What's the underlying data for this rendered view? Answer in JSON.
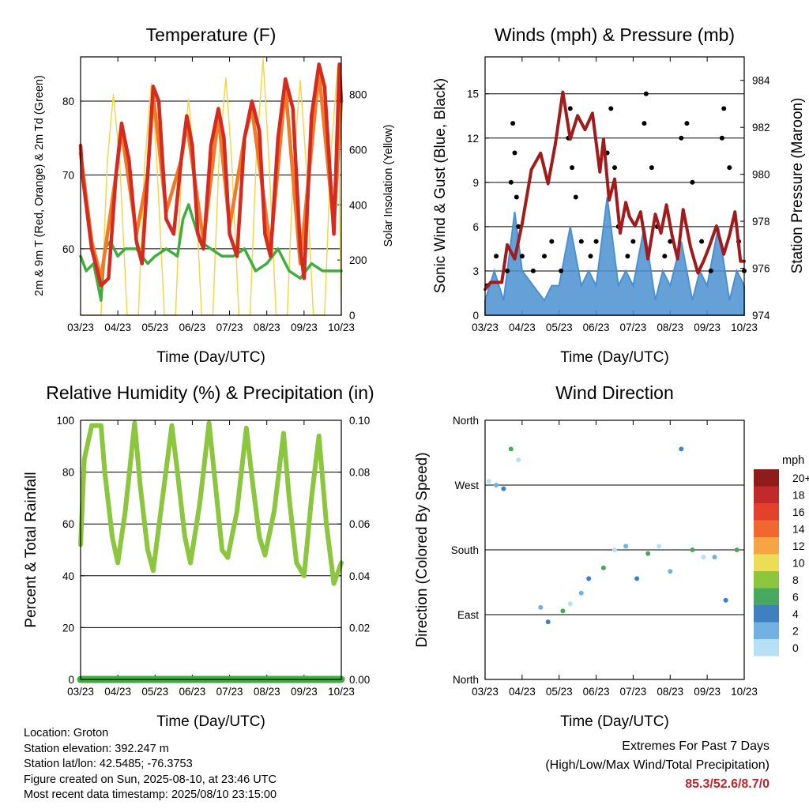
{
  "panels": {
    "temperature": {
      "title": "Temperature (F)",
      "ylabel_left": "2m & 9m T (Red, Orange) & 2m Td (Green)",
      "ylabel_right": "Solar Insolation (Yellow)",
      "xlabel": "Time (Day/UTC)"
    },
    "winds": {
      "title": "Winds (mph) & Pressure (mb)",
      "ylabel_left": "Sonic Wind & Gust (Blue, Black)",
      "ylabel_right": "Station Pressure (Maroon)",
      "xlabel": "Time (Day/UTC)"
    },
    "humidity": {
      "title": "Relative Humidity (%) & Precipitation (in)",
      "ylabel_left": "Percent & Total Rainfall",
      "xlabel": "Time (Day/UTC)"
    },
    "direction": {
      "title": "Wind Direction",
      "ylabel_left": "Direction (Colored By Speed)",
      "xlabel": "Time (Day/UTC)",
      "legend_title": "mph"
    }
  },
  "chart_data": [
    {
      "id": "temperature",
      "type": "line",
      "title": "Temperature (F)",
      "xlabel": "Time (Day/UTC)",
      "ylabel": "2m & 9m T (Red, Orange) & 2m Td (Green)",
      "y2label": "Solar Insolation (Yellow)",
      "x_ticks": [
        "03/23",
        "04/23",
        "05/23",
        "06/23",
        "07/23",
        "08/23",
        "09/23",
        "10/23"
      ],
      "ylim": [
        51,
        86
      ],
      "y_ticks": [
        60,
        70,
        80
      ],
      "y2lim": [
        0,
        936
      ],
      "y2_ticks": [
        0,
        200,
        400,
        600,
        800
      ],
      "grid": true,
      "series": [
        {
          "name": "2m T",
          "color": "#d42a20",
          "x": [
            0,
            0.05,
            0.3,
            0.55,
            0.75,
            0.95,
            1.1,
            1.3,
            1.5,
            1.65,
            1.8,
            1.95,
            2.1,
            2.3,
            2.5,
            2.7,
            2.85,
            3.0,
            3.15,
            3.3,
            3.5,
            3.7,
            3.85,
            4.0,
            4.2,
            4.4,
            4.6,
            4.8,
            4.95,
            5.1,
            5.3,
            5.5,
            5.7,
            5.9,
            6.0,
            6.2,
            6.4,
            6.55,
            6.8,
            6.95,
            7.0
          ],
          "values": [
            74,
            70,
            60,
            55,
            56,
            70,
            77,
            72,
            61,
            58,
            70,
            82,
            80,
            64,
            62,
            72,
            78,
            74,
            62,
            60,
            74,
            79,
            75,
            62,
            59,
            75,
            80,
            76,
            62,
            59,
            75,
            83,
            79,
            60,
            56,
            78,
            85,
            82,
            62,
            85,
            80
          ]
        },
        {
          "name": "9m T",
          "color": "#f07a25",
          "x": [
            0,
            0.3,
            0.55,
            0.95,
            1.1,
            1.5,
            1.8,
            1.95,
            2.3,
            2.7,
            2.85,
            3.3,
            3.7,
            4.0,
            4.4,
            4.6,
            5.1,
            5.5,
            5.9,
            6.4,
            6.8,
            7.0
          ],
          "values": [
            73,
            61,
            56,
            70,
            76,
            62,
            70,
            81,
            65,
            72,
            77,
            61,
            78,
            63,
            75,
            79,
            60,
            82,
            58,
            84,
            63,
            80
          ]
        },
        {
          "name": "2m Td",
          "color": "#3fae3f",
          "x": [
            0,
            0.15,
            0.35,
            0.55,
            0.65,
            0.8,
            1.0,
            1.2,
            1.5,
            1.8,
            2.0,
            2.3,
            2.6,
            2.75,
            2.9,
            3.2,
            3.5,
            3.8,
            4.1,
            4.4,
            4.7,
            5.0,
            5.3,
            5.6,
            5.9,
            6.2,
            6.5,
            6.8,
            7.0
          ],
          "values": [
            59,
            57,
            58,
            53,
            60,
            61,
            59,
            60,
            60,
            58,
            59,
            60,
            59,
            64,
            66,
            61,
            60,
            59,
            59,
            60,
            57,
            58,
            60,
            57,
            56,
            58,
            57,
            57,
            57
          ]
        },
        {
          "name": "Solar Insolation",
          "color": "#f3d64a",
          "axis": "y2",
          "x": [
            0,
            0.25,
            0.55,
            0.72,
            0.88,
            1.05,
            1.25,
            1.55,
            1.72,
            1.9,
            2.05,
            2.25,
            2.55,
            2.72,
            2.9,
            3.05,
            3.25,
            3.55,
            3.72,
            3.9,
            4.05,
            4.25,
            4.55,
            4.72,
            4.9,
            5.05,
            5.25,
            5.55,
            5.72,
            5.9,
            6.05,
            6.25,
            6.55,
            6.72,
            6.9,
            7.0
          ],
          "values": [
            0,
            0,
            0,
            560,
            800,
            560,
            0,
            0,
            550,
            840,
            550,
            0,
            0,
            560,
            780,
            560,
            0,
            0,
            580,
            860,
            580,
            0,
            0,
            580,
            930,
            580,
            0,
            0,
            560,
            850,
            560,
            0,
            0,
            580,
            900,
            0
          ]
        }
      ]
    },
    {
      "id": "winds",
      "type": "line",
      "title": "Winds (mph) & Pressure (mb)",
      "xlabel": "Time (Day/UTC)",
      "ylabel": "Sonic Wind & Gust (Blue, Black)",
      "y2label": "Station Pressure (Maroon)",
      "x_ticks": [
        "03/23",
        "04/23",
        "05/23",
        "06/23",
        "07/23",
        "08/23",
        "09/23",
        "10/23"
      ],
      "ylim": [
        0,
        17.5
      ],
      "y_ticks": [
        0,
        3,
        6,
        9,
        12,
        15
      ],
      "y2lim": [
        974,
        985
      ],
      "y2_ticks": [
        974,
        976,
        978,
        980,
        982,
        984
      ],
      "grid": true,
      "series": [
        {
          "name": "Station Pressure",
          "color": "#a01c1c",
          "axis": "y2",
          "x": [
            0,
            0.15,
            0.45,
            0.6,
            0.8,
            1.0,
            1.25,
            1.5,
            1.7,
            1.9,
            2.1,
            2.3,
            2.5,
            2.7,
            2.9,
            3.1,
            3.2,
            3.35,
            3.5,
            3.65,
            3.8,
            3.9,
            4.05,
            4.2,
            4.4,
            4.6,
            4.75,
            4.9,
            5.05,
            5.2,
            5.35,
            5.55,
            5.75,
            5.9,
            6.05,
            6.25,
            6.45,
            6.6,
            6.75,
            6.9,
            7.0
          ],
          "values": [
            975.1,
            975.4,
            975.4,
            977,
            976.4,
            977.9,
            980.2,
            980.9,
            979.6,
            981.3,
            983.5,
            981.5,
            982.5,
            981.9,
            982.6,
            980.1,
            981.5,
            978.9,
            979.8,
            977.5,
            978.8,
            978.2,
            977.8,
            978.4,
            976.4,
            978.3,
            977.5,
            978.7,
            977.4,
            976.4,
            978.5,
            976.9,
            975.8,
            976.3,
            976.9,
            977.8,
            976.6,
            977.4,
            978.4,
            976.3,
            976.3
          ]
        },
        {
          "name": "Sonic Wind",
          "color": "#4a90d0",
          "x": [
            0,
            0.25,
            0.5,
            0.8,
            1.0,
            1.3,
            1.6,
            1.8,
            2.0,
            2.3,
            2.6,
            2.8,
            3.0,
            3.3,
            3.6,
            3.8,
            4.0,
            4.3,
            4.6,
            4.8,
            5.0,
            5.3,
            5.6,
            5.8,
            6.0,
            6.3,
            6.6,
            6.8,
            7.0
          ],
          "values": [
            1,
            3,
            1,
            7,
            3,
            2,
            1,
            2,
            2,
            6,
            2,
            3,
            2,
            8,
            2,
            3,
            2,
            6,
            1,
            3,
            2,
            5,
            1,
            3,
            2,
            6,
            1,
            3,
            2
          ]
        },
        {
          "name": "Gust",
          "color": "#000000",
          "x": [
            0.05,
            0.3,
            0.6,
            0.7,
            0.75,
            0.8,
            0.85,
            0.9,
            1.0,
            1.3,
            1.6,
            1.8,
            2.05,
            2.25,
            2.3,
            2.35,
            2.45,
            2.6,
            2.85,
            3.0,
            3.3,
            3.4,
            3.5,
            3.6,
            3.85,
            4.0,
            4.3,
            4.35,
            4.5,
            4.65,
            4.85,
            5.0,
            5.3,
            5.45,
            5.6,
            5.85,
            6.1,
            6.4,
            6.45,
            6.6,
            6.85,
            7.0
          ],
          "values": [
            2,
            4,
            3,
            9,
            13,
            11,
            8,
            6,
            4,
            3,
            4,
            5,
            3,
            12,
            14,
            10,
            8,
            5,
            4,
            5,
            11,
            14,
            10,
            6,
            4,
            5,
            13,
            15,
            10,
            6,
            4,
            5,
            12,
            13,
            9,
            5,
            3,
            12,
            14,
            10,
            5,
            3
          ]
        }
      ]
    },
    {
      "id": "humidity",
      "type": "line",
      "title": "Relative Humidity (%) & Precipitation (in)",
      "xlabel": "Time (Day/UTC)",
      "ylabel": "Percent & Total Rainfall",
      "x_ticks": [
        "03/23",
        "04/23",
        "05/23",
        "06/23",
        "07/23",
        "08/23",
        "09/23",
        "10/23"
      ],
      "ylim": [
        0,
        100
      ],
      "y_ticks": [
        0,
        20,
        40,
        60,
        80,
        100
      ],
      "y2lim": [
        0,
        0.1
      ],
      "y2_ticks": [
        "0.00",
        "0.02",
        "0.04",
        "0.06",
        "0.08",
        "0.10"
      ],
      "grid": true,
      "series": [
        {
          "name": "Relative Humidity",
          "color": "#8cc63f",
          "x": [
            0,
            0.1,
            0.3,
            0.55,
            0.65,
            0.85,
            1.0,
            1.2,
            1.45,
            1.6,
            1.8,
            1.95,
            2.2,
            2.45,
            2.6,
            2.8,
            2.95,
            3.2,
            3.45,
            3.6,
            3.8,
            3.95,
            4.2,
            4.45,
            4.6,
            4.8,
            4.95,
            5.2,
            5.45,
            5.6,
            5.8,
            6.0,
            6.2,
            6.4,
            6.6,
            6.8,
            7.0
          ],
          "values": [
            52,
            85,
            98,
            98,
            80,
            55,
            45,
            65,
            99,
            75,
            50,
            42,
            70,
            98,
            80,
            55,
            45,
            68,
            99,
            78,
            50,
            47,
            65,
            97,
            78,
            55,
            48,
            65,
            95,
            70,
            45,
            40,
            70,
            94,
            60,
            37,
            45
          ]
        },
        {
          "name": "Precipitation",
          "color": "#3fae3f",
          "axis": "y2",
          "x": [
            0,
            7.0
          ],
          "values": [
            0.0,
            0.0
          ]
        }
      ]
    },
    {
      "id": "direction",
      "type": "scatter",
      "title": "Wind Direction",
      "xlabel": "Time (Day/UTC)",
      "ylabel": "Direction (Colored By Speed)",
      "x_ticks": [
        "03/23",
        "04/23",
        "05/23",
        "06/23",
        "07/23",
        "08/23",
        "09/23",
        "10/23"
      ],
      "y_ticks": [
        "North",
        "East",
        "South",
        "West",
        "North"
      ],
      "ylim": [
        0,
        360
      ],
      "legend": {
        "title": "mph",
        "position": "right",
        "labels": [
          "20+",
          "18",
          "16",
          "14",
          "12",
          "10",
          "8",
          "6",
          "4",
          "2",
          "0"
        ],
        "colors": [
          "#8f1b1b",
          "#c12a2a",
          "#e4412c",
          "#f06830",
          "#f7a444",
          "#ebdd56",
          "#8cc63f",
          "#47a85f",
          "#3f80c0",
          "#72b1e2",
          "#b8e0f5"
        ]
      },
      "series": [
        {
          "name": "direction",
          "x": [
            0.1,
            0.3,
            0.5,
            0.7,
            0.9,
            1.5,
            1.7,
            2.1,
            2.3,
            2.6,
            2.8,
            3.2,
            3.5,
            3.8,
            4.1,
            4.4,
            4.7,
            5.0,
            5.3,
            5.6,
            5.9,
            6.2,
            6.5,
            6.8
          ],
          "values": [
            275,
            270,
            265,
            320,
            305,
            100,
            80,
            95,
            105,
            120,
            140,
            155,
            180,
            185,
            140,
            175,
            185,
            150,
            320,
            180,
            170,
            170,
            110,
            180
          ]
        }
      ]
    }
  ],
  "footer": {
    "location": "Location: Groton",
    "elevation": "Station elevation: 392.247 m",
    "latlon": "Station lat/lon: 42.5485; -76.3753",
    "created": "Figure created on Sun, 2025-08-10, at 23:46 UTC",
    "recent": "Most recent data timestamp: 2025/08/10 23:15:00"
  },
  "extremes": {
    "line1": "Extremes For Past 7 Days",
    "line2": "(High/Low/Max Wind/Total Precipitation)",
    "values": "85.3/52.6/8.7/0"
  }
}
